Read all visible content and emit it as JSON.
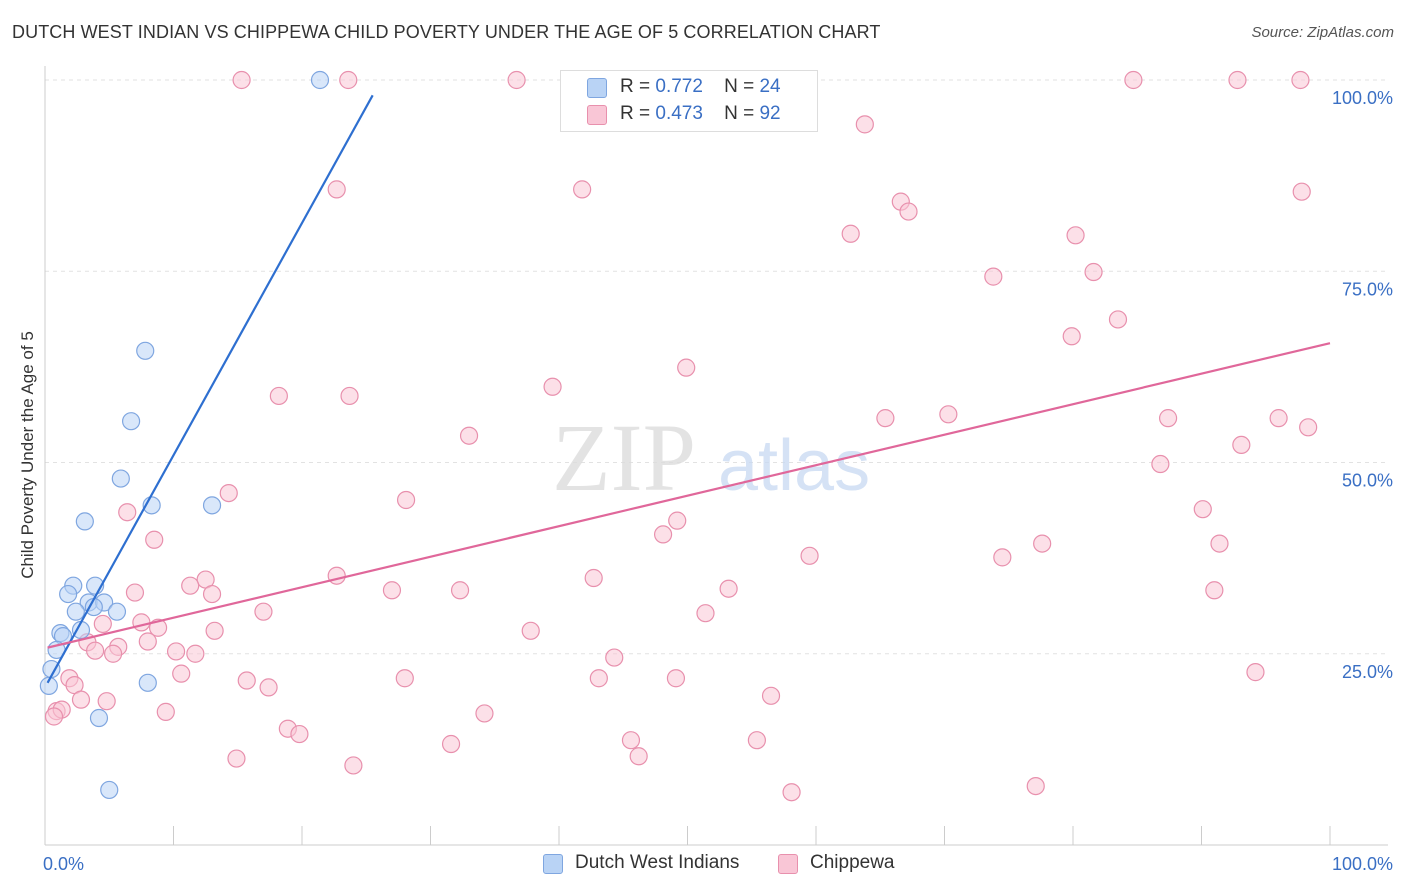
{
  "title": "DUTCH WEST INDIAN VS CHIPPEWA CHILD POVERTY UNDER THE AGE OF 5 CORRELATION CHART",
  "source": "Source: ZipAtlas.com",
  "watermark": {
    "zip": "ZIP",
    "atlas": "atlas"
  },
  "legend": [
    {
      "r_label": "R =",
      "r_value": "0.772",
      "n_label": "N =",
      "n_value": "24",
      "fill": "#b9d3f5",
      "stroke": "#7fa6e0"
    },
    {
      "r_label": "R =",
      "r_value": "0.473",
      "n_label": "N =",
      "n_value": "92",
      "fill": "#f9c6d6",
      "stroke": "#e890ad"
    }
  ],
  "chart_data": {
    "type": "scatter",
    "title": "DUTCH WEST INDIAN VS CHIPPEWA CHILD POVERTY UNDER THE AGE OF 5 CORRELATION CHART",
    "xlabel": "",
    "ylabel": "Child Poverty Under the Age of 5",
    "xlim": [
      0,
      100
    ],
    "ylim": [
      0,
      100
    ],
    "x_tick_labels": [
      "0.0%",
      "100.0%"
    ],
    "y_ticks": [
      25,
      50,
      75,
      100
    ],
    "y_tick_labels": [
      "25.0%",
      "50.0%",
      "75.0%",
      "100.0%"
    ],
    "grid": true,
    "legend_position": "top-center",
    "series": [
      {
        "name": "Dutch West Indians",
        "color": "#7fa6e0",
        "fill": "#b9d3f5",
        "line_color": "#2e6fd0",
        "trend": {
          "x": [
            0.2,
            25.5
          ],
          "y": [
            21.2,
            98.0
          ]
        },
        "points": [
          {
            "x": 21.4,
            "y": 100
          },
          {
            "x": 7.8,
            "y": 64.6
          },
          {
            "x": 6.7,
            "y": 55.4
          },
          {
            "x": 5.9,
            "y": 47.9
          },
          {
            "x": 8.3,
            "y": 44.4
          },
          {
            "x": 13.0,
            "y": 44.4
          },
          {
            "x": 3.1,
            "y": 42.3
          },
          {
            "x": 2.2,
            "y": 33.9
          },
          {
            "x": 3.9,
            "y": 33.9
          },
          {
            "x": 1.8,
            "y": 32.8
          },
          {
            "x": 3.4,
            "y": 31.7
          },
          {
            "x": 4.6,
            "y": 31.7
          },
          {
            "x": 2.4,
            "y": 30.5
          },
          {
            "x": 3.8,
            "y": 31.1
          },
          {
            "x": 5.6,
            "y": 30.5
          },
          {
            "x": 1.2,
            "y": 27.7
          },
          {
            "x": 2.8,
            "y": 28.1
          },
          {
            "x": 1.4,
            "y": 27.3
          },
          {
            "x": 0.9,
            "y": 25.5
          },
          {
            "x": 0.5,
            "y": 23.0
          },
          {
            "x": 0.3,
            "y": 20.8
          },
          {
            "x": 8.0,
            "y": 21.2
          },
          {
            "x": 4.2,
            "y": 16.6
          },
          {
            "x": 5.0,
            "y": 7.2
          }
        ]
      },
      {
        "name": "Chippewa",
        "color": "#e890ad",
        "fill": "#f9c6d6",
        "line_color": "#e0679a",
        "trend": {
          "x": [
            0.2,
            100
          ],
          "y": [
            25.8,
            65.6
          ]
        },
        "points": [
          {
            "x": 15.3,
            "y": 100
          },
          {
            "x": 23.6,
            "y": 100
          },
          {
            "x": 36.7,
            "y": 100
          },
          {
            "x": 84.7,
            "y": 100
          },
          {
            "x": 92.8,
            "y": 100
          },
          {
            "x": 97.7,
            "y": 100
          },
          {
            "x": 63.8,
            "y": 94.2
          },
          {
            "x": 22.7,
            "y": 85.7
          },
          {
            "x": 41.8,
            "y": 85.7
          },
          {
            "x": 97.8,
            "y": 85.4
          },
          {
            "x": 66.6,
            "y": 84.1
          },
          {
            "x": 67.2,
            "y": 82.8
          },
          {
            "x": 62.7,
            "y": 79.9
          },
          {
            "x": 80.2,
            "y": 79.7
          },
          {
            "x": 73.8,
            "y": 74.3
          },
          {
            "x": 81.6,
            "y": 74.9
          },
          {
            "x": 83.5,
            "y": 68.7
          },
          {
            "x": 79.9,
            "y": 66.5
          },
          {
            "x": 49.9,
            "y": 62.4
          },
          {
            "x": 39.5,
            "y": 59.9
          },
          {
            "x": 18.2,
            "y": 58.7
          },
          {
            "x": 23.7,
            "y": 58.7
          },
          {
            "x": 70.3,
            "y": 56.3
          },
          {
            "x": 65.4,
            "y": 55.8
          },
          {
            "x": 87.4,
            "y": 55.8
          },
          {
            "x": 96.0,
            "y": 55.8
          },
          {
            "x": 98.3,
            "y": 54.6
          },
          {
            "x": 33.0,
            "y": 53.5
          },
          {
            "x": 93.1,
            "y": 52.3
          },
          {
            "x": 86.8,
            "y": 49.8
          },
          {
            "x": 14.3,
            "y": 46.0
          },
          {
            "x": 28.1,
            "y": 45.1
          },
          {
            "x": 90.1,
            "y": 43.9
          },
          {
            "x": 6.4,
            "y": 43.5
          },
          {
            "x": 49.2,
            "y": 42.4
          },
          {
            "x": 48.1,
            "y": 40.6
          },
          {
            "x": 8.5,
            "y": 39.9
          },
          {
            "x": 91.4,
            "y": 39.4
          },
          {
            "x": 59.5,
            "y": 37.8
          },
          {
            "x": 74.5,
            "y": 37.6
          },
          {
            "x": 77.6,
            "y": 39.4
          },
          {
            "x": 12.5,
            "y": 34.7
          },
          {
            "x": 22.7,
            "y": 35.2
          },
          {
            "x": 42.7,
            "y": 34.9
          },
          {
            "x": 11.3,
            "y": 33.9
          },
          {
            "x": 13.0,
            "y": 32.8
          },
          {
            "x": 7.0,
            "y": 33.0
          },
          {
            "x": 27.0,
            "y": 33.3
          },
          {
            "x": 32.3,
            "y": 33.3
          },
          {
            "x": 53.2,
            "y": 33.5
          },
          {
            "x": 91.0,
            "y": 33.3
          },
          {
            "x": 17.0,
            "y": 30.5
          },
          {
            "x": 51.4,
            "y": 30.3
          },
          {
            "x": 7.5,
            "y": 29.1
          },
          {
            "x": 4.5,
            "y": 28.9
          },
          {
            "x": 8.8,
            "y": 28.4
          },
          {
            "x": 13.2,
            "y": 28.0
          },
          {
            "x": 37.8,
            "y": 28.0
          },
          {
            "x": 3.3,
            "y": 26.5
          },
          {
            "x": 8.0,
            "y": 26.6
          },
          {
            "x": 5.7,
            "y": 25.9
          },
          {
            "x": 3.9,
            "y": 25.4
          },
          {
            "x": 5.3,
            "y": 25.0
          },
          {
            "x": 10.2,
            "y": 25.3
          },
          {
            "x": 11.7,
            "y": 25.0
          },
          {
            "x": 44.3,
            "y": 24.5
          },
          {
            "x": 10.6,
            "y": 22.4
          },
          {
            "x": 94.2,
            "y": 22.6
          },
          {
            "x": 1.9,
            "y": 21.8
          },
          {
            "x": 2.3,
            "y": 20.9
          },
          {
            "x": 15.7,
            "y": 21.5
          },
          {
            "x": 17.4,
            "y": 20.6
          },
          {
            "x": 28.0,
            "y": 21.8
          },
          {
            "x": 43.1,
            "y": 21.8
          },
          {
            "x": 49.1,
            "y": 21.8
          },
          {
            "x": 2.8,
            "y": 19.0
          },
          {
            "x": 4.8,
            "y": 18.8
          },
          {
            "x": 56.5,
            "y": 19.5
          },
          {
            "x": 0.9,
            "y": 17.5
          },
          {
            "x": 1.3,
            "y": 17.7
          },
          {
            "x": 0.7,
            "y": 16.8
          },
          {
            "x": 9.4,
            "y": 17.4
          },
          {
            "x": 34.2,
            "y": 17.2
          },
          {
            "x": 18.9,
            "y": 15.2
          },
          {
            "x": 19.8,
            "y": 14.5
          },
          {
            "x": 45.6,
            "y": 13.7
          },
          {
            "x": 55.4,
            "y": 13.7
          },
          {
            "x": 31.6,
            "y": 13.2
          },
          {
            "x": 46.2,
            "y": 11.6
          },
          {
            "x": 14.9,
            "y": 11.3
          },
          {
            "x": 24.0,
            "y": 10.4
          },
          {
            "x": 77.1,
            "y": 7.7
          },
          {
            "x": 58.1,
            "y": 6.9
          }
        ]
      }
    ]
  }
}
